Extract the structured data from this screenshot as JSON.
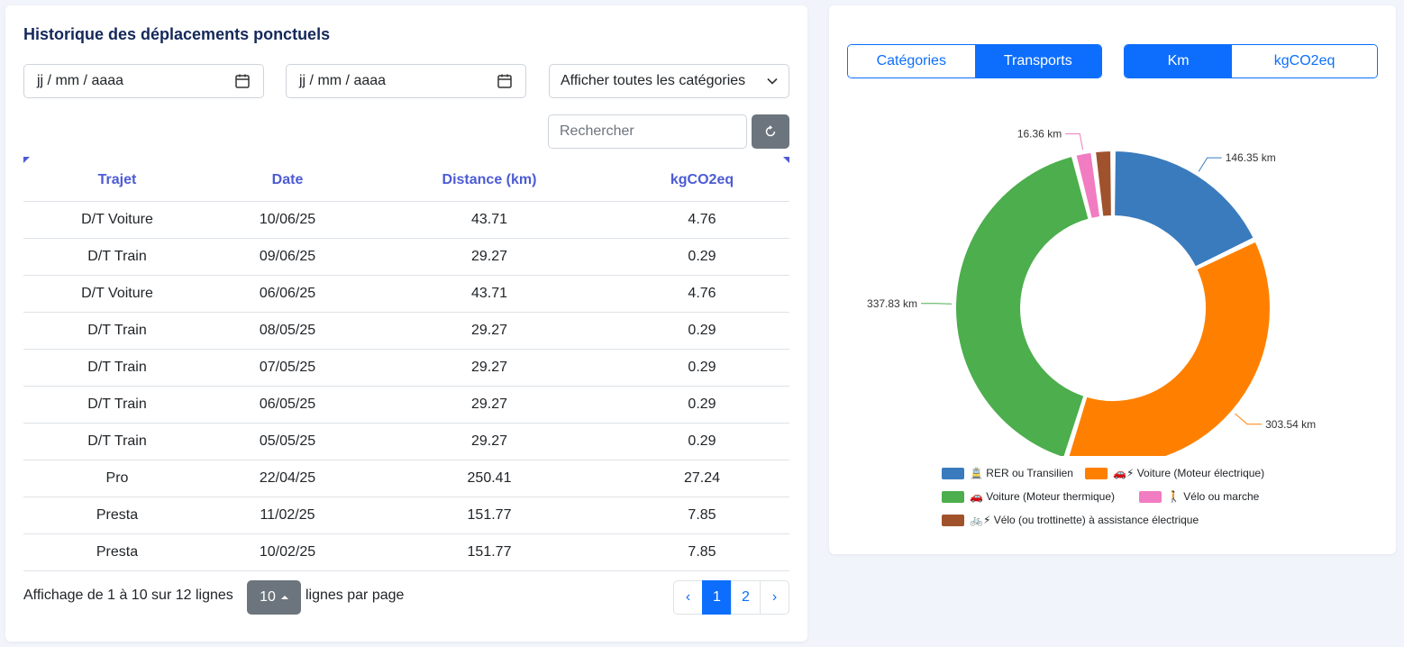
{
  "table_panel": {
    "title": "Historique des déplacements ponctuels",
    "date_start_placeholder": "jj / mm / aaaa",
    "date_end_placeholder": "jj / mm / aaaa",
    "category_filter": "Afficher toutes les catégories",
    "search_placeholder": "Rechercher",
    "columns": [
      "Trajet",
      "Date",
      "Distance (km)",
      "kgCO2eq"
    ],
    "rows": [
      [
        "D/T Voiture",
        "10/06/25",
        "43.71",
        "4.76"
      ],
      [
        "D/T Train",
        "09/06/25",
        "29.27",
        "0.29"
      ],
      [
        "D/T Voiture",
        "06/06/25",
        "43.71",
        "4.76"
      ],
      [
        "D/T Train",
        "08/05/25",
        "29.27",
        "0.29"
      ],
      [
        "D/T Train",
        "07/05/25",
        "29.27",
        "0.29"
      ],
      [
        "D/T Train",
        "06/05/25",
        "29.27",
        "0.29"
      ],
      [
        "D/T Train",
        "05/05/25",
        "29.27",
        "0.29"
      ],
      [
        "Pro",
        "22/04/25",
        "250.41",
        "27.24"
      ],
      [
        "Presta",
        "11/02/25",
        "151.77",
        "7.85"
      ],
      [
        "Presta",
        "10/02/25",
        "151.77",
        "7.85"
      ]
    ],
    "footer_info": "Affichage de 1 à 10 sur 12 lignes",
    "page_size": "10",
    "footer_suffix": "lignes par page",
    "pagination": {
      "prev": "‹",
      "pages": [
        "1",
        "2"
      ],
      "next": "›",
      "active_page": "1"
    }
  },
  "chart_panel": {
    "view_toggle": [
      "Catégories",
      "Transports"
    ],
    "view_active": "Transports",
    "unit_toggle": [
      "Km",
      "kgCO2eq"
    ],
    "unit_active": "Km"
  },
  "chart_data": {
    "type": "pie",
    "donut": true,
    "unit": "km",
    "categories": [
      "🚊 RER ou Transilien",
      "🚗⚡ Voiture (Moteur électrique)",
      "🚗 Voiture (Moteur thermique)",
      "🚶 Vélo ou marche",
      "🚲⚡ Vélo (ou trottinette) à assistance électrique"
    ],
    "values": [
      146.35,
      303.54,
      337.83,
      16.36,
      16.36
    ],
    "data_labels": [
      "146.35 km",
      "303.54 km",
      "337.83 km",
      "16.36 km",
      ""
    ],
    "colors": [
      "#3a7bbd",
      "#ff8000",
      "#4cae4c",
      "#f17cc1",
      "#a0522d"
    ],
    "legend_position": "bottom"
  },
  "colors": {
    "primary": "#0d6efd",
    "header_text": "#4c5bd4",
    "title_text": "#14285a",
    "secondary_button": "#6c757d"
  }
}
